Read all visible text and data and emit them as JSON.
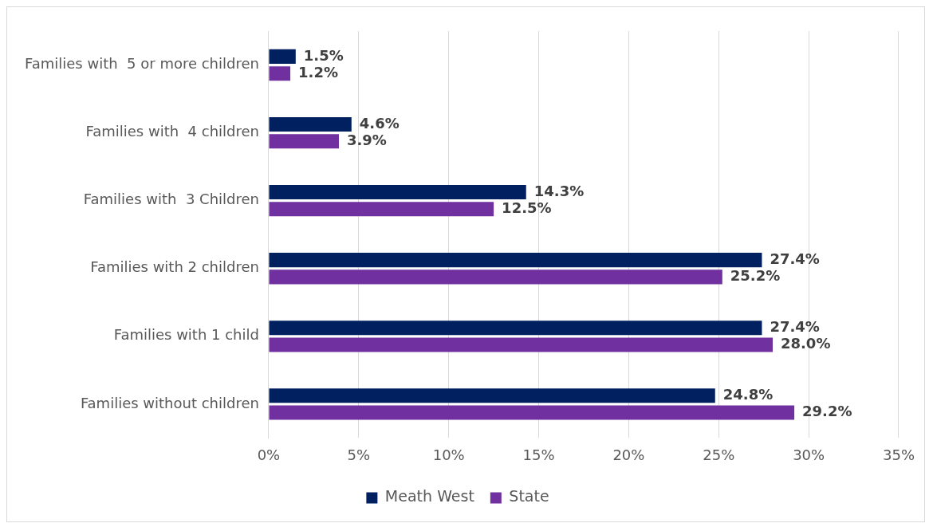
{
  "chart_data": {
    "type": "bar",
    "orientation": "horizontal",
    "categories": [
      "Families with  5 or more children",
      "Families with  4 children",
      "Families with  3 Children",
      "Families with 2 children",
      "Families with 1 child",
      "Families without children"
    ],
    "series": [
      {
        "name": "Meath West",
        "color": "#002060",
        "values": [
          1.5,
          4.6,
          14.3,
          27.4,
          27.4,
          24.8
        ],
        "value_labels": [
          "1.5%",
          "4.6%",
          "14.3%",
          "27.4%",
          "27.4%",
          "24.8%"
        ]
      },
      {
        "name": "State",
        "color": "#7030a0",
        "values": [
          1.2,
          3.9,
          12.5,
          25.2,
          28.0,
          29.2
        ],
        "value_labels": [
          "1.2%",
          "3.9%",
          "12.5%",
          "25.2%",
          "28.0%",
          "29.2%"
        ]
      }
    ],
    "xlim": [
      0,
      35
    ],
    "xticks": [
      {
        "value": 0,
        "label": "0%"
      },
      {
        "value": 5,
        "label": "5%"
      },
      {
        "value": 10,
        "label": "10%"
      },
      {
        "value": 15,
        "label": "15%"
      },
      {
        "value": 20,
        "label": "20%"
      },
      {
        "value": 25,
        "label": "25%"
      },
      {
        "value": 30,
        "label": "30%"
      },
      {
        "value": 35,
        "label": "35%"
      }
    ],
    "grid": "x",
    "legend": "bottom"
  }
}
